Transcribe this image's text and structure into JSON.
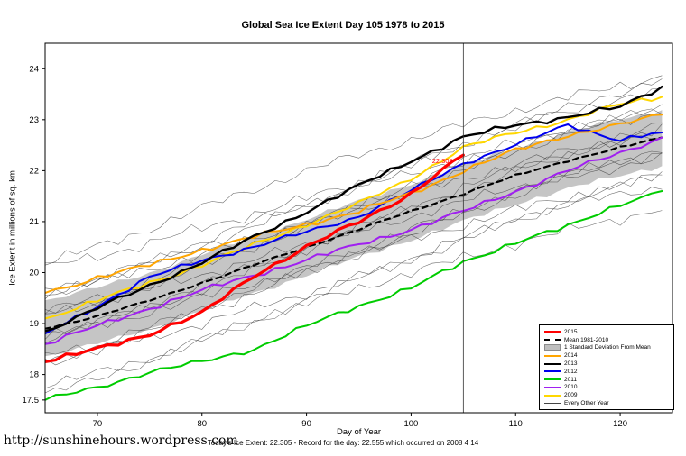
{
  "page": {
    "title": "Global Sea Ice Extent Day 105 1978 to 2015",
    "footer": "Today's Ice Extent: 22.305  - Record for the day: 22.555 which occurred on 2008 4 14",
    "url": "http://sunshinehours.wordpress.com"
  },
  "chart_data": {
    "type": "line",
    "title": "Global Sea Ice Extent Day 105 1978 to 2015",
    "xlabel": "Day of Year",
    "ylabel": "Ice Extent in millions of sq. km",
    "xlim": [
      65,
      125
    ],
    "ylim": [
      17.25,
      24.5
    ],
    "xticks": [
      70,
      80,
      90,
      100,
      110,
      120
    ],
    "yticks": [
      17.5,
      18,
      19,
      20,
      21,
      22,
      23,
      24
    ],
    "grid": false,
    "vline_x": 105,
    "annotation": {
      "x": 103,
      "y": 22.15,
      "text": "22.305",
      "color": "#FF0000"
    },
    "x": [
      65,
      70,
      75,
      80,
      85,
      90,
      95,
      100,
      105,
      110,
      115,
      120,
      124
    ],
    "series": [
      {
        "name": "Mean 1981-2010",
        "color": "#000000",
        "width": 2.2,
        "style": "dashed",
        "values": [
          18.9,
          19.15,
          19.45,
          19.8,
          20.15,
          20.5,
          20.85,
          21.2,
          21.55,
          21.9,
          22.2,
          22.45,
          22.65
        ]
      },
      {
        "name": "2009",
        "color": "#FFD700",
        "width": 2,
        "style": "solid",
        "values": [
          19.1,
          19.45,
          19.8,
          20.15,
          20.55,
          20.95,
          21.35,
          21.85,
          22.45,
          22.75,
          23.0,
          23.3,
          23.45
        ]
      },
      {
        "name": "2010",
        "color": "#A020F0",
        "width": 2,
        "style": "solid",
        "values": [
          18.6,
          18.95,
          19.3,
          19.65,
          19.95,
          20.25,
          20.55,
          20.85,
          21.2,
          21.6,
          22.0,
          22.35,
          22.65
        ]
      },
      {
        "name": "2011",
        "color": "#00CC00",
        "width": 2,
        "style": "solid",
        "values": [
          17.5,
          17.75,
          18.05,
          18.25,
          18.5,
          18.95,
          19.35,
          19.7,
          20.2,
          20.6,
          20.9,
          21.35,
          21.6
        ]
      },
      {
        "name": "2012",
        "color": "#0000EE",
        "width": 2,
        "style": "solid",
        "values": [
          18.8,
          19.35,
          19.9,
          20.25,
          20.5,
          20.8,
          21.1,
          21.6,
          22.15,
          22.5,
          22.9,
          22.6,
          22.75
        ]
      },
      {
        "name": "2014",
        "color": "#FFA500",
        "width": 2,
        "style": "solid",
        "values": [
          19.6,
          19.9,
          20.15,
          20.45,
          20.7,
          20.95,
          21.2,
          21.55,
          22.0,
          22.4,
          22.7,
          22.9,
          23.1
        ]
      },
      {
        "name": "2013",
        "color": "#000000",
        "width": 2.4,
        "style": "solid",
        "values": [
          18.85,
          19.3,
          19.75,
          20.2,
          20.7,
          21.2,
          21.7,
          22.2,
          22.65,
          22.9,
          23.05,
          23.25,
          23.65
        ]
      },
      {
        "name": "2015",
        "color": "#FF0000",
        "width": 3.2,
        "style": "solid",
        "values": [
          18.25,
          18.5,
          18.8,
          19.2,
          19.95,
          20.5,
          21.0,
          21.55,
          22.305,
          null,
          null,
          null,
          null
        ]
      }
    ],
    "band": {
      "name": "1 Standard Deviation From Mean",
      "color": "#BFBFBF",
      "center": "Mean 1981-2010",
      "halfwidth": 0.55
    },
    "background_years": {
      "name": "Every Other Year",
      "color": "#3f3f3f",
      "offsets": [
        1.35,
        1.05,
        0.85,
        0.7,
        0.55,
        0.45,
        0.3,
        0.15,
        0.0,
        -0.15,
        -0.3,
        -0.45,
        -0.6,
        -0.8,
        -1.0,
        -1.25
      ]
    },
    "legend": {
      "position": "bottom-right",
      "entries": [
        {
          "label": "2015",
          "color": "#FF0000",
          "style": "line",
          "width": 3
        },
        {
          "label": "Mean 1981-2010",
          "color": "#000000",
          "style": "dashed",
          "width": 2
        },
        {
          "label": "1 Standard Deviation From Mean",
          "color": "#BFBFBF",
          "style": "box",
          "width": 0
        },
        {
          "label": "2014",
          "color": "#FFA500",
          "style": "line",
          "width": 2
        },
        {
          "label": "2013",
          "color": "#000000",
          "style": "line",
          "width": 2
        },
        {
          "label": "2012",
          "color": "#0000EE",
          "style": "line",
          "width": 2
        },
        {
          "label": "2011",
          "color": "#00CC00",
          "style": "line",
          "width": 2
        },
        {
          "label": "2010",
          "color": "#A020F0",
          "style": "line",
          "width": 2
        },
        {
          "label": "2009",
          "color": "#FFD700",
          "style": "line",
          "width": 2
        },
        {
          "label": "Every Other Year",
          "color": "#444444",
          "style": "line",
          "width": 1
        }
      ]
    },
    "today_extent": 22.305,
    "record_for_day": 22.555,
    "record_date": "2008 4 14"
  }
}
